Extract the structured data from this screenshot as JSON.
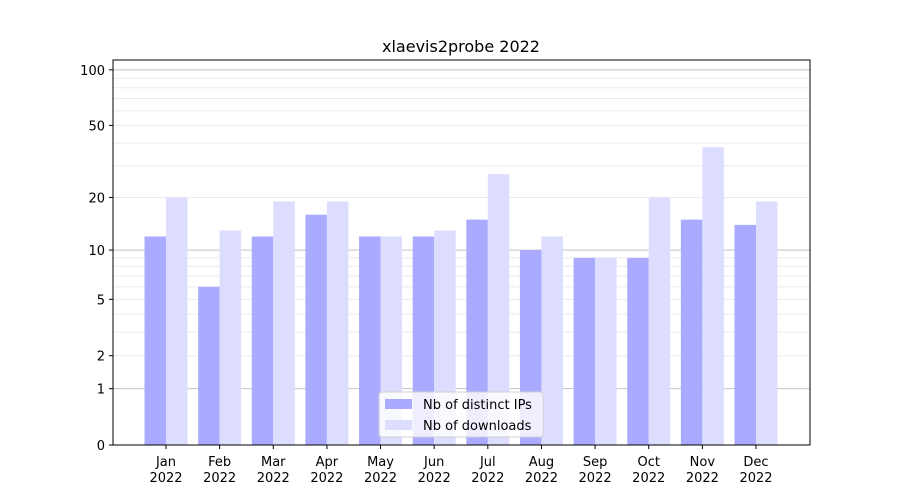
{
  "chart_data": {
    "type": "bar",
    "title": "xlaevis2probe 2022",
    "xlabel": "",
    "ylabel": "",
    "yscale": "log(1+y)",
    "ylim": [
      0,
      113
    ],
    "yticks": [
      0,
      1,
      2,
      5,
      10,
      20,
      50,
      100
    ],
    "grid": true,
    "legend_position": "bottom-center",
    "categories": [
      "Jan\n2022",
      "Feb\n2022",
      "Mar\n2022",
      "Apr\n2022",
      "May\n2022",
      "Jun\n2022",
      "Jul\n2022",
      "Aug\n2022",
      "Sep\n2022",
      "Oct\n2022",
      "Nov\n2022",
      "Dec\n2022"
    ],
    "series": [
      {
        "name": "Nb of distinct IPs",
        "color": "#aaaaff",
        "values": [
          12,
          6,
          12,
          16,
          12,
          12,
          15,
          10,
          9,
          9,
          15,
          14
        ]
      },
      {
        "name": "Nb of downloads",
        "color": "#ddddff",
        "values": [
          20,
          13,
          19,
          19,
          12,
          13,
          27,
          12,
          9,
          20,
          38,
          19
        ]
      }
    ]
  }
}
